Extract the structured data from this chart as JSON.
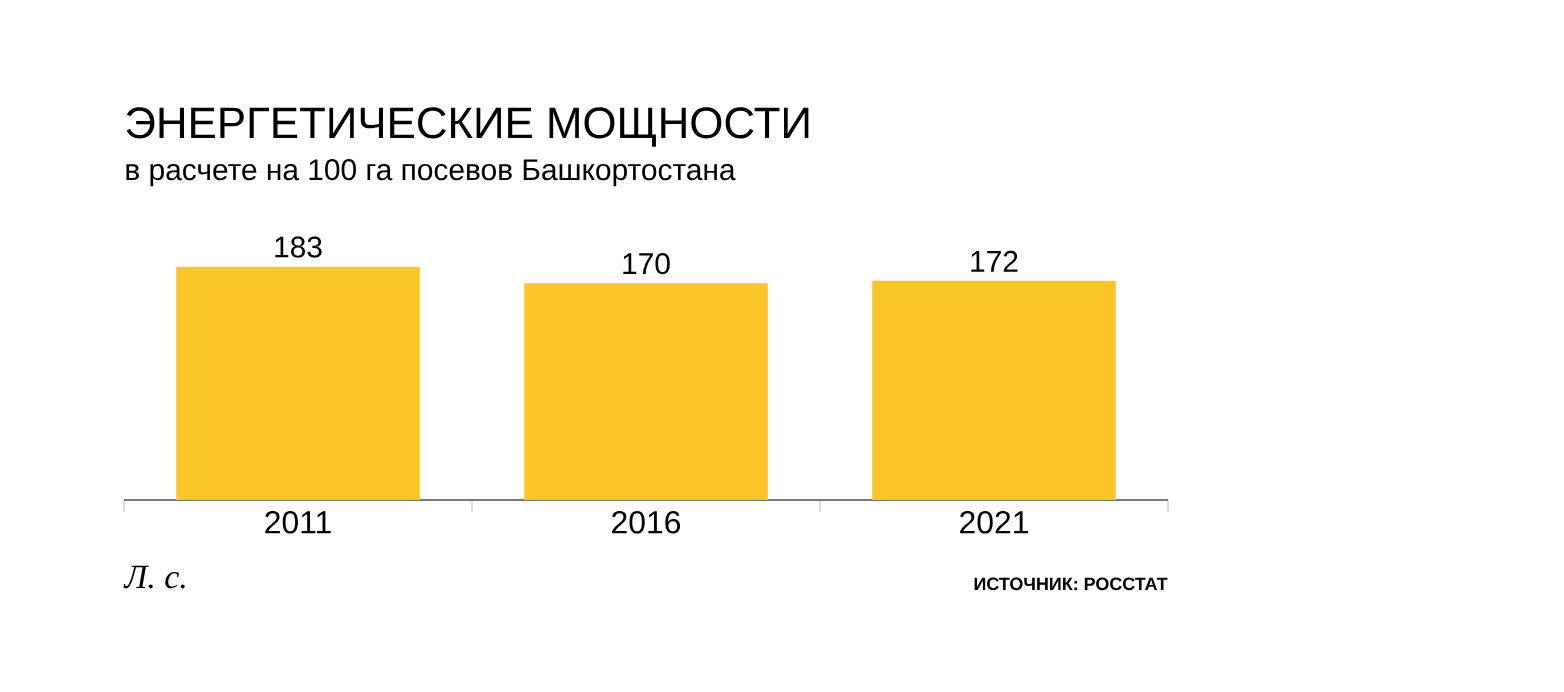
{
  "chart_data": {
    "type": "bar",
    "title": "ЭНЕРГЕТИЧЕСКИЕ МОЩНОСТИ",
    "subtitle": "в расчете на 100 га посевов Башкортостана",
    "categories": [
      "2011",
      "2016",
      "2021"
    ],
    "values": [
      183,
      170,
      172
    ],
    "color": "#fcc62a",
    "data_labels": true,
    "annotations": [
      "Л. с.",
      "ИСТОЧНИК: РОССТАТ"
    ]
  }
}
